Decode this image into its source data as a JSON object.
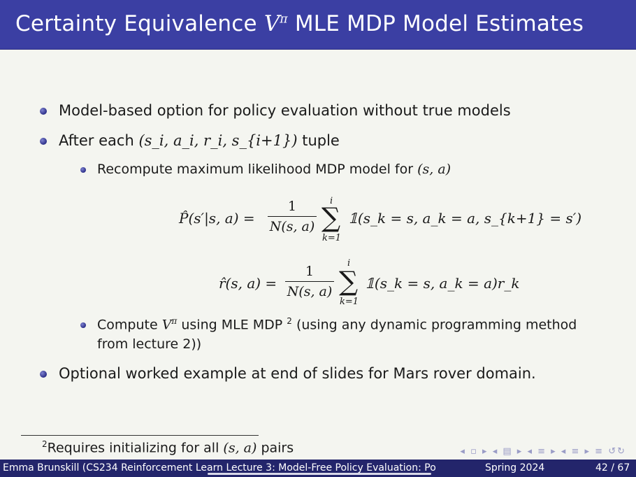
{
  "title": {
    "prefix": "Certainty Equivalence ",
    "symbol": "V",
    "superscript": "π",
    "suffix": " MLE MDP Model Estimates"
  },
  "bullets": {
    "b1": "Model-based option for policy evaluation without true models",
    "b2_pre": "After each ",
    "b2_tuple": "(s_i, a_i, r_i, s_{i+1})",
    "b2_post": " tuple",
    "sub1_pre": "Recompute maximum likelihood MDP model for ",
    "sub1_math": "(s, a)",
    "sub2_pre": "Compute ",
    "sub2_mid": " using MLE MDP ",
    "sub2_fnmark": "2",
    "sub2_post": " (using any dynamic programming method",
    "sub2_line2": "from lecture 2))",
    "b3": "Optional worked example at end of slides for Mars rover domain."
  },
  "equations": {
    "p_lhs": "P̂(s′|s, a) =",
    "r_lhs": "r̂(s, a) =",
    "numerator": "1",
    "denominator": "N(s, a)",
    "sum_upper": "i",
    "sum_lower": "k=1",
    "p_term": "𝟙(s_k = s, a_k = a, s_{k+1} = s′)",
    "r_term": "𝟙(s_k = s, a_k = a)r_k"
  },
  "footnote": {
    "mark": "2",
    "text": "Requires initializing for all ",
    "math": "(s, a)",
    "text_end": " pairs"
  },
  "footer": {
    "left": "Emma Brunskill (CS234 Reinforcement Learn Lecture 3: Model-Free Policy Evaluation: Po",
    "term": "Spring 2024",
    "page": "42 / 67"
  },
  "colors": {
    "title_bar": "#3b3fa3",
    "footer_bar": "#23256b",
    "bullet": "#3b3fa3"
  }
}
